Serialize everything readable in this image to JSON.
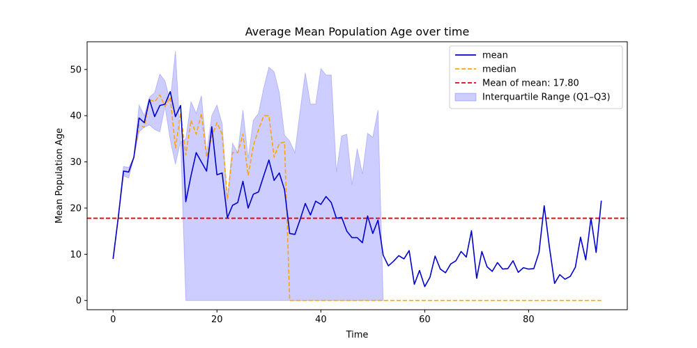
{
  "chart_data": {
    "type": "line",
    "title": "Average Mean Population Age over time",
    "xlabel": "Time",
    "ylabel": "Mean Population Age",
    "xlim": [
      -5,
      99
    ],
    "ylim": [
      -2,
      56
    ],
    "xticks": [
      0,
      20,
      40,
      60,
      80
    ],
    "yticks": [
      0,
      10,
      20,
      30,
      40,
      50
    ],
    "grid": false,
    "legend_position": "top-right",
    "colors": {
      "mean": "#0000cd",
      "median": "#ffa500",
      "mean_of_mean": "#e00000",
      "iqr_fill": "#6666ff"
    },
    "legend": [
      {
        "key": "mean",
        "label": "mean",
        "style": "solid-line"
      },
      {
        "key": "median",
        "label": "median",
        "style": "dashed-line"
      },
      {
        "key": "mean_of_mean",
        "label": "Mean of mean: 17.80",
        "style": "dashed-line"
      },
      {
        "key": "iqr_fill",
        "label": "Interquartile Range (Q1–Q3)",
        "style": "patch"
      }
    ],
    "mean_of_mean": 17.8,
    "x": [
      0,
      1,
      2,
      3,
      4,
      5,
      6,
      7,
      8,
      9,
      10,
      11,
      12,
      13,
      14,
      15,
      16,
      17,
      18,
      19,
      20,
      21,
      22,
      23,
      24,
      25,
      26,
      27,
      28,
      29,
      30,
      31,
      32,
      33,
      34,
      35,
      36,
      37,
      38,
      39,
      40,
      41,
      42,
      43,
      44,
      45,
      46,
      47,
      48,
      49,
      50,
      51,
      52,
      53,
      54,
      55,
      56,
      57,
      58,
      59,
      60,
      61,
      62,
      63,
      64,
      65,
      66,
      67,
      68,
      69,
      70,
      71,
      72,
      73,
      74,
      75,
      76,
      77,
      78,
      79,
      80,
      81,
      82,
      83,
      84,
      85,
      86,
      87,
      88,
      89,
      90,
      91,
      92,
      93,
      94
    ],
    "series": [
      {
        "key": "mean",
        "name": "mean",
        "values": [
          9,
          18,
          28,
          27.8,
          31,
          39.5,
          38.5,
          43.5,
          39.8,
          42.2,
          42.5,
          45.2,
          39.8,
          42.2,
          21.4,
          27,
          32,
          30,
          28,
          37.6,
          27.2,
          27.6,
          17.9,
          20.6,
          21.2,
          25.8,
          20,
          23,
          23.5,
          27,
          30.4,
          26,
          27.6,
          24,
          14.5,
          14.3,
          17.5,
          21,
          18.5,
          21.5,
          20.8,
          22.5,
          21.2,
          17.8,
          18,
          15,
          13.6,
          13.6,
          12.5,
          18.3,
          14.5,
          17.4,
          9.8,
          7.5,
          8.5,
          9.7,
          9,
          10.8,
          3.5,
          6.5,
          3,
          5,
          9.6,
          6.8,
          6,
          7.9,
          8.6,
          10.6,
          9.4,
          15.1,
          4.8,
          10.6,
          7.3,
          6.3,
          8.2,
          6.8,
          6.9,
          8.6,
          6.1,
          7.1,
          6.8,
          6.9,
          10.4,
          20.5,
          11.6,
          3.7,
          5.6,
          4.6,
          5.2,
          7.2,
          13.7,
          8.8,
          17.8,
          10.4,
          21.6
        ]
      },
      {
        "key": "median",
        "name": "median",
        "values": [
          9,
          18,
          28,
          28,
          31,
          38,
          37.5,
          43.5,
          43,
          44.5,
          42,
          44,
          33,
          40.5,
          31.5,
          39,
          36,
          40.5,
          31,
          35.5,
          38.5,
          36,
          22,
          32,
          32,
          36,
          27,
          33.5,
          37,
          40,
          40,
          31,
          34,
          34.3,
          0,
          0,
          0,
          0,
          0,
          0,
          0,
          0,
          0,
          0,
          0,
          0,
          0,
          0,
          0,
          0,
          0,
          0,
          0,
          0,
          0,
          0,
          0,
          0,
          0,
          0,
          0,
          0,
          0,
          0,
          0,
          0,
          0,
          0,
          0,
          0,
          0,
          0,
          0,
          0,
          0,
          0,
          0,
          0,
          0,
          0,
          0,
          0,
          0,
          0,
          0,
          0,
          0,
          0,
          0,
          0,
          0,
          0,
          0,
          0,
          0
        ]
      }
    ],
    "iqr": {
      "x": [
        0,
        1,
        2,
        3,
        4,
        5,
        6,
        7,
        8,
        9,
        10,
        11,
        12,
        13,
        14,
        15,
        16,
        17,
        18,
        19,
        20,
        21,
        22,
        23,
        24,
        25,
        26,
        27,
        28,
        29,
        30,
        31,
        32,
        33,
        34,
        35,
        36,
        37,
        38,
        39,
        40,
        41,
        42,
        43,
        44,
        45,
        46,
        47,
        48,
        49,
        50,
        51,
        52
      ],
      "q1": [
        9,
        18,
        27,
        26.5,
        31,
        36.5,
        37.5,
        38,
        37,
        36.5,
        42,
        34.8,
        29.5,
        34.5,
        0,
        0,
        0,
        0,
        0,
        0,
        0,
        0,
        0,
        0,
        0,
        0,
        0,
        0,
        0,
        0,
        0,
        0,
        0,
        0,
        0,
        0,
        0,
        0,
        0,
        0,
        0,
        0,
        0,
        0,
        0,
        0,
        0,
        0,
        0,
        0,
        0,
        0,
        0
      ],
      "q3": [
        9,
        18,
        29,
        28.8,
        31,
        42.3,
        40,
        44,
        45,
        49,
        47.5,
        43,
        54,
        34.3,
        35,
        43,
        40.5,
        44.3,
        32,
        40,
        42.3,
        38.2,
        21.5,
        34,
        32,
        41.2,
        30.8,
        39,
        40.5,
        46,
        50.5,
        49.5,
        45,
        35.8,
        34.5,
        32,
        41,
        49.3,
        42.5,
        42.5,
        50.2,
        48.8,
        48.8,
        27.8,
        35.6,
        36,
        25,
        32.9,
        27.4,
        36.2,
        35.3,
        41.2,
        0
      ]
    }
  }
}
